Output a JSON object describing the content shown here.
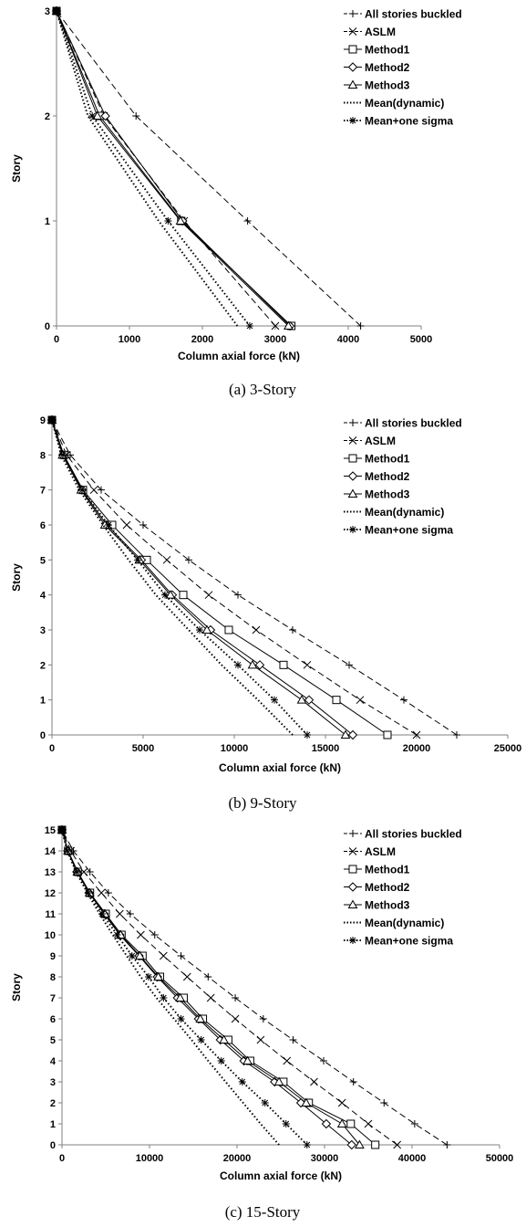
{
  "legend": [
    "All stories buckled",
    "ASLM",
    "Method1",
    "Method2",
    "Method3",
    "Mean(dynamic)",
    "Mean+one sigma"
  ],
  "chart_data": [
    {
      "type": "line",
      "caption": "(a)  3-Story",
      "xlabel": "Column axial force (kN)",
      "ylabel": "Story",
      "xlim": [
        0,
        5000
      ],
      "ylim": [
        0,
        3
      ],
      "xticks": [
        0,
        1000,
        2000,
        3000,
        4000,
        5000
      ],
      "yticks": [
        0,
        1,
        2,
        3
      ],
      "legend_position": "top-right",
      "grid": false,
      "series": [
        {
          "name": "All stories buckled",
          "style": "dashed",
          "marker": "plus",
          "x": [
            4170,
            2620,
            1090,
            0
          ],
          "y": [
            0,
            1,
            2,
            3
          ]
        },
        {
          "name": "ASLM",
          "style": "dashed",
          "marker": "x",
          "x": [
            3000,
            1750,
            650,
            0
          ],
          "y": [
            0,
            1,
            2,
            3
          ]
        },
        {
          "name": "Method1",
          "style": "solid",
          "marker": "square",
          "x": [
            3220,
            1710,
            590,
            0
          ],
          "y": [
            0,
            1,
            2,
            3
          ]
        },
        {
          "name": "Method2",
          "style": "solid",
          "marker": "diamond",
          "x": [
            3200,
            1730,
            670,
            0
          ],
          "y": [
            0,
            1,
            2,
            3
          ]
        },
        {
          "name": "Method3",
          "style": "solid",
          "marker": "triangle",
          "x": [
            3180,
            1700,
            560,
            0
          ],
          "y": [
            0,
            1,
            2,
            3
          ]
        },
        {
          "name": "Mean(dynamic)",
          "style": "dotted",
          "marker": "none",
          "x": [
            2480,
            1400,
            430,
            0
          ],
          "y": [
            0,
            1,
            2,
            3
          ]
        },
        {
          "name": "Mean+one sigma",
          "style": "dotted",
          "marker": "star",
          "x": [
            2650,
            1530,
            490,
            0
          ],
          "y": [
            0,
            1,
            2,
            3
          ]
        }
      ]
    },
    {
      "type": "line",
      "caption": "(b)  9-Story",
      "xlabel": "Column axial force (kN)",
      "ylabel": "Story",
      "xlim": [
        0,
        25000
      ],
      "ylim": [
        0,
        9
      ],
      "xticks": [
        0,
        5000,
        10000,
        15000,
        20000,
        25000
      ],
      "yticks": [
        0,
        1,
        2,
        3,
        4,
        5,
        6,
        7,
        8,
        9
      ],
      "legend_position": "top-right",
      "grid": false,
      "series": [
        {
          "name": "All stories buckled",
          "style": "dashed",
          "marker": "plus",
          "x": [
            22200,
            19300,
            16300,
            13200,
            10200,
            7500,
            5000,
            2700,
            1000,
            0
          ],
          "y": [
            0,
            1,
            2,
            3,
            4,
            5,
            6,
            7,
            8,
            9
          ]
        },
        {
          "name": "ASLM",
          "style": "dashed",
          "marker": "x",
          "x": [
            20000,
            16900,
            14000,
            11200,
            8600,
            6300,
            4100,
            2300,
            800,
            0
          ],
          "y": [
            0,
            1,
            2,
            3,
            4,
            5,
            6,
            7,
            8,
            9
          ]
        },
        {
          "name": "Method1",
          "style": "solid",
          "marker": "square",
          "x": [
            18400,
            15600,
            12700,
            9700,
            7200,
            5200,
            3300,
            1700,
            650,
            0
          ],
          "y": [
            0,
            1,
            2,
            3,
            4,
            5,
            6,
            7,
            8,
            9
          ]
        },
        {
          "name": "Method2",
          "style": "solid",
          "marker": "diamond",
          "x": [
            16500,
            14100,
            11400,
            8700,
            6600,
            4900,
            3000,
            1650,
            600,
            0
          ],
          "y": [
            0,
            1,
            2,
            3,
            4,
            5,
            6,
            7,
            8,
            9
          ]
        },
        {
          "name": "Method3",
          "style": "solid",
          "marker": "triangle",
          "x": [
            16100,
            13700,
            11000,
            8500,
            6500,
            4800,
            2900,
            1600,
            580,
            0
          ],
          "y": [
            0,
            1,
            2,
            3,
            4,
            5,
            6,
            7,
            8,
            9
          ]
        },
        {
          "name": "Mean(dynamic)",
          "style": "dotted",
          "marker": "none",
          "x": [
            13200,
            11300,
            9300,
            7500,
            5700,
            4200,
            2800,
            1500,
            500,
            0
          ],
          "y": [
            0,
            1,
            2,
            3,
            4,
            5,
            6,
            7,
            8,
            9
          ]
        },
        {
          "name": "Mean+one sigma",
          "style": "dotted",
          "marker": "star",
          "x": [
            14000,
            12200,
            10200,
            8100,
            6200,
            4700,
            3100,
            1650,
            600,
            0
          ],
          "y": [
            0,
            1,
            2,
            3,
            4,
            5,
            6,
            7,
            8,
            9
          ]
        }
      ]
    },
    {
      "type": "line",
      "caption": "(c)  15-Story",
      "xlabel": "Column axial force (kN)",
      "ylabel": "Story",
      "xlim": [
        0,
        50000
      ],
      "ylim": [
        0,
        15
      ],
      "xticks": [
        0,
        10000,
        20000,
        30000,
        40000,
        50000
      ],
      "yticks": [
        0,
        1,
        2,
        3,
        4,
        5,
        6,
        7,
        8,
        9,
        10,
        11,
        12,
        13,
        14,
        15
      ],
      "legend_position": "top-right",
      "grid": false,
      "series": [
        {
          "name": "All stories buckled",
          "style": "dashed",
          "marker": "plus",
          "x": [
            44000,
            40300,
            36800,
            33300,
            29900,
            26400,
            23000,
            19800,
            16700,
            13600,
            10600,
            7800,
            5300,
            3200,
            1300,
            0
          ],
          "y": [
            0,
            1,
            2,
            3,
            4,
            5,
            6,
            7,
            8,
            9,
            10,
            11,
            12,
            13,
            14,
            15
          ]
        },
        {
          "name": "ASLM",
          "style": "dashed",
          "marker": "x",
          "x": [
            38300,
            35000,
            32000,
            28800,
            25700,
            22700,
            19800,
            17000,
            14300,
            11600,
            9000,
            6600,
            4500,
            2500,
            1000,
            0
          ],
          "y": [
            0,
            1,
            2,
            3,
            4,
            5,
            6,
            7,
            8,
            9,
            10,
            11,
            12,
            13,
            14,
            15
          ]
        },
        {
          "name": "Method1",
          "style": "solid",
          "marker": "square",
          "x": [
            35800,
            33000,
            28200,
            25300,
            21500,
            19000,
            16100,
            13900,
            11200,
            9200,
            6800,
            5000,
            3200,
            1800,
            700,
            0
          ],
          "y": [
            0,
            1,
            2,
            3,
            4,
            5,
            6,
            7,
            8,
            9,
            10,
            11,
            12,
            13,
            14,
            15
          ]
        },
        {
          "name": "Method2",
          "style": "solid",
          "marker": "diamond",
          "x": [
            33100,
            30200,
            27300,
            24300,
            20800,
            18100,
            15600,
            13200,
            10900,
            8800,
            6600,
            4800,
            3100,
            1700,
            650,
            0
          ],
          "y": [
            0,
            1,
            2,
            3,
            4,
            5,
            6,
            7,
            8,
            9,
            10,
            11,
            12,
            13,
            14,
            15
          ]
        },
        {
          "name": "Method3",
          "style": "solid",
          "marker": "triangle",
          "x": [
            34000,
            32000,
            27900,
            24800,
            21200,
            18500,
            15800,
            13500,
            11000,
            8900,
            6700,
            4900,
            3150,
            1750,
            680,
            0
          ],
          "y": [
            0,
            1,
            2,
            3,
            4,
            5,
            6,
            7,
            8,
            9,
            10,
            11,
            12,
            13,
            14,
            15
          ]
        },
        {
          "name": "Mean(dynamic)",
          "style": "dotted",
          "marker": "none",
          "x": [
            24800,
            22700,
            20700,
            18700,
            16700,
            14800,
            12800,
            10800,
            9000,
            7400,
            5800,
            4300,
            2900,
            1600,
            600,
            0
          ],
          "y": [
            0,
            1,
            2,
            3,
            4,
            5,
            6,
            7,
            8,
            9,
            10,
            11,
            12,
            13,
            14,
            15
          ]
        },
        {
          "name": "Mean+one sigma",
          "style": "dotted",
          "marker": "star",
          "x": [
            28000,
            25600,
            23200,
            20600,
            18200,
            15900,
            13600,
            11600,
            9900,
            8000,
            6300,
            4600,
            3000,
            1700,
            620,
            0
          ],
          "y": [
            0,
            1,
            2,
            3,
            4,
            5,
            6,
            7,
            8,
            9,
            10,
            11,
            12,
            13,
            14,
            15
          ]
        }
      ]
    }
  ]
}
